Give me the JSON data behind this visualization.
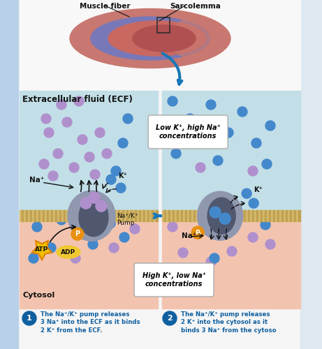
{
  "bg_color": "#f5f5f5",
  "sidebar_color": "#b8d0e8",
  "right_sidebar_color": "#dde8f0",
  "top_bg": "#f0f0f0",
  "ecf_color": "#c2dfe8",
  "cyto_color": "#f2c4b0",
  "membrane_color": "#d4b86a",
  "pump_outer": "#9098b0",
  "pump_inner": "#505870",
  "na_color": "#b090cc",
  "k_color": "#4488cc",
  "atp_star": "#f0c000",
  "atp_border": "#e08000",
  "adp_color": "#f0c830",
  "p_color": "#e89010",
  "arrow_blue": "#1878b8",
  "text_dark": "#111111",
  "text_blue": "#1060a0",
  "ecf_label": "Extracellular fluid (ECF)",
  "cytosol_label": "Cytosol",
  "muscle_fiber_label": "Muscle fiber",
  "sarcolemma_label": "Sarcolemma",
  "low_k_text": "Low K⁺, high Na⁺\nconcentrations",
  "high_k_text": "High K⁺, low Na⁺\nconcentrations",
  "pump_label": "Na⁺/K⁺\nPump",
  "caption1": "The Na⁺/K⁺ pump releases\n3 Na⁺ into the ECF as it binds\n2 K⁺ from the ECF.",
  "caption2": "The Na⁺/K⁺ pump releases\n2 K⁺ into the cytosol as it\nbinds 3 Na⁺ from the cytoso"
}
